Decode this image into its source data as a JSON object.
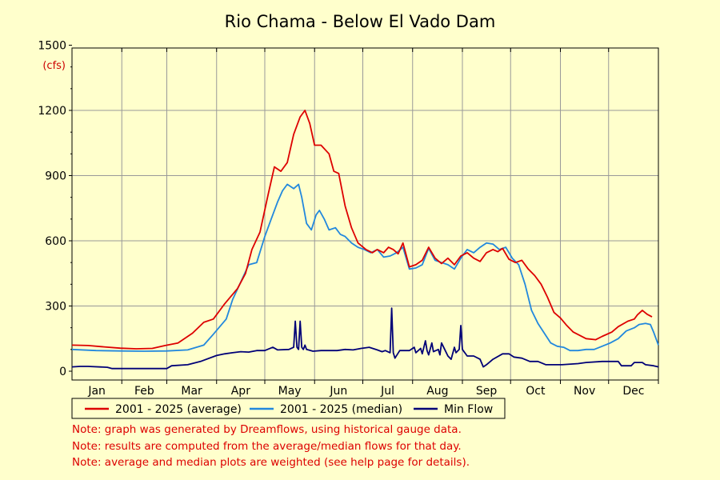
{
  "colors": {
    "background": "#ffffcc",
    "grid": "#999999",
    "average": "#dd0000",
    "median": "#2288dd",
    "min_flow": "#000077",
    "unit_label": "#cc0000",
    "notes": "#dd0000"
  },
  "chart_data": {
    "type": "line",
    "title": "Rio Chama - Below El Vado Dam",
    "ylabel": "(cfs)",
    "ylim": [
      0,
      1500
    ],
    "yticks": [
      0,
      300,
      600,
      900,
      1200,
      1500
    ],
    "xlim": [
      0,
      365
    ],
    "grid": true,
    "legend_position": "bottom",
    "months": [
      "Jan",
      "Feb",
      "Mar",
      "Apr",
      "May",
      "Jun",
      "Jul",
      "Aug",
      "Sep",
      "Oct",
      "Nov",
      "Dec"
    ],
    "series": [
      {
        "name": "2001 - 2025 (average)",
        "color": "#dd0000",
        "points": [
          [
            0,
            120
          ],
          [
            10,
            118
          ],
          [
            20,
            112
          ],
          [
            30,
            106
          ],
          [
            40,
            103
          ],
          [
            50,
            105
          ],
          [
            58,
            118
          ],
          [
            66,
            130
          ],
          [
            75,
            175
          ],
          [
            82,
            225
          ],
          [
            88,
            240
          ],
          [
            95,
            310
          ],
          [
            103,
            380
          ],
          [
            108,
            450
          ],
          [
            112,
            560
          ],
          [
            117,
            640
          ],
          [
            122,
            810
          ],
          [
            126,
            940
          ],
          [
            130,
            920
          ],
          [
            134,
            960
          ],
          [
            138,
            1090
          ],
          [
            142,
            1170
          ],
          [
            145,
            1200
          ],
          [
            148,
            1140
          ],
          [
            151,
            1040
          ],
          [
            155,
            1040
          ],
          [
            160,
            1000
          ],
          [
            163,
            920
          ],
          [
            166,
            910
          ],
          [
            170,
            760
          ],
          [
            174,
            660
          ],
          [
            178,
            590
          ],
          [
            183,
            560
          ],
          [
            187,
            545
          ],
          [
            190,
            560
          ],
          [
            194,
            545
          ],
          [
            197,
            570
          ],
          [
            200,
            560
          ],
          [
            203,
            540
          ],
          [
            206,
            590
          ],
          [
            210,
            480
          ],
          [
            214,
            490
          ],
          [
            218,
            510
          ],
          [
            222,
            570
          ],
          [
            226,
            520
          ],
          [
            230,
            495
          ],
          [
            234,
            520
          ],
          [
            238,
            490
          ],
          [
            242,
            530
          ],
          [
            246,
            545
          ],
          [
            250,
            520
          ],
          [
            254,
            505
          ],
          [
            258,
            545
          ],
          [
            262,
            560
          ],
          [
            265,
            550
          ],
          [
            268,
            565
          ],
          [
            272,
            515
          ],
          [
            276,
            500
          ],
          [
            280,
            510
          ],
          [
            284,
            470
          ],
          [
            288,
            440
          ],
          [
            292,
            400
          ],
          [
            296,
            340
          ],
          [
            300,
            270
          ],
          [
            304,
            245
          ],
          [
            308,
            210
          ],
          [
            312,
            180
          ],
          [
            316,
            165
          ],
          [
            320,
            150
          ],
          [
            326,
            145
          ],
          [
            330,
            160
          ],
          [
            336,
            180
          ],
          [
            340,
            205
          ],
          [
            346,
            230
          ],
          [
            350,
            240
          ],
          [
            352,
            260
          ],
          [
            355,
            280
          ],
          [
            358,
            262
          ],
          [
            361,
            250
          ]
        ]
      },
      {
        "name": "2001 - 2025 (median)",
        "color": "#2288dd",
        "points": [
          [
            0,
            100
          ],
          [
            15,
            95
          ],
          [
            30,
            93
          ],
          [
            45,
            92
          ],
          [
            59,
            93
          ],
          [
            72,
            98
          ],
          [
            82,
            120
          ],
          [
            88,
            170
          ],
          [
            96,
            240
          ],
          [
            100,
            330
          ],
          [
            105,
            410
          ],
          [
            110,
            490
          ],
          [
            115,
            500
          ],
          [
            120,
            620
          ],
          [
            124,
            700
          ],
          [
            128,
            780
          ],
          [
            131,
            830
          ],
          [
            134,
            860
          ],
          [
            138,
            840
          ],
          [
            141,
            860
          ],
          [
            143,
            800
          ],
          [
            146,
            680
          ],
          [
            149,
            650
          ],
          [
            152,
            720
          ],
          [
            154,
            740
          ],
          [
            157,
            700
          ],
          [
            160,
            650
          ],
          [
            164,
            660
          ],
          [
            167,
            630
          ],
          [
            170,
            620
          ],
          [
            174,
            590
          ],
          [
            178,
            570
          ],
          [
            182,
            560
          ],
          [
            186,
            545
          ],
          [
            190,
            560
          ],
          [
            194,
            525
          ],
          [
            198,
            530
          ],
          [
            202,
            545
          ],
          [
            206,
            570
          ],
          [
            210,
            470
          ],
          [
            214,
            475
          ],
          [
            218,
            490
          ],
          [
            222,
            565
          ],
          [
            226,
            510
          ],
          [
            230,
            500
          ],
          [
            234,
            490
          ],
          [
            238,
            470
          ],
          [
            242,
            520
          ],
          [
            246,
            560
          ],
          [
            250,
            545
          ],
          [
            254,
            570
          ],
          [
            258,
            590
          ],
          [
            262,
            585
          ],
          [
            266,
            560
          ],
          [
            270,
            570
          ],
          [
            274,
            520
          ],
          [
            278,
            490
          ],
          [
            282,
            400
          ],
          [
            286,
            280
          ],
          [
            290,
            220
          ],
          [
            294,
            175
          ],
          [
            298,
            130
          ],
          [
            302,
            115
          ],
          [
            306,
            110
          ],
          [
            310,
            95
          ],
          [
            315,
            95
          ],
          [
            320,
            100
          ],
          [
            325,
            100
          ],
          [
            330,
            115
          ],
          [
            335,
            130
          ],
          [
            340,
            150
          ],
          [
            345,
            185
          ],
          [
            350,
            200
          ],
          [
            353,
            215
          ],
          [
            357,
            220
          ],
          [
            360,
            215
          ],
          [
            362,
            180
          ],
          [
            365,
            120
          ]
        ]
      },
      {
        "name": "Min Flow",
        "color": "#000077",
        "points": [
          [
            0,
            20
          ],
          [
            5,
            22
          ],
          [
            10,
            22
          ],
          [
            22,
            18
          ],
          [
            25,
            12
          ],
          [
            50,
            12
          ],
          [
            59,
            12
          ],
          [
            62,
            25
          ],
          [
            72,
            30
          ],
          [
            80,
            45
          ],
          [
            90,
            72
          ],
          [
            95,
            80
          ],
          [
            100,
            85
          ],
          [
            105,
            90
          ],
          [
            110,
            88
          ],
          [
            115,
            95
          ],
          [
            120,
            95
          ],
          [
            125,
            110
          ],
          [
            128,
            98
          ],
          [
            135,
            100
          ],
          [
            138,
            110
          ],
          [
            139,
            230
          ],
          [
            140,
            110
          ],
          [
            141,
            100
          ],
          [
            142,
            230
          ],
          [
            143,
            110
          ],
          [
            144,
            100
          ],
          [
            145,
            120
          ],
          [
            146,
            100
          ],
          [
            150,
            92
          ],
          [
            155,
            95
          ],
          [
            165,
            95
          ],
          [
            170,
            100
          ],
          [
            175,
            98
          ],
          [
            180,
            105
          ],
          [
            185,
            110
          ],
          [
            190,
            98
          ],
          [
            193,
            90
          ],
          [
            195,
            95
          ],
          [
            198,
            85
          ],
          [
            199,
            290
          ],
          [
            200,
            85
          ],
          [
            201,
            60
          ],
          [
            204,
            95
          ],
          [
            210,
            95
          ],
          [
            213,
            110
          ],
          [
            214,
            85
          ],
          [
            217,
            105
          ],
          [
            218,
            80
          ],
          [
            220,
            140
          ],
          [
            221,
            95
          ],
          [
            222,
            75
          ],
          [
            224,
            130
          ],
          [
            225,
            90
          ],
          [
            228,
            100
          ],
          [
            229,
            75
          ],
          [
            230,
            130
          ],
          [
            232,
            100
          ],
          [
            234,
            70
          ],
          [
            236,
            55
          ],
          [
            238,
            110
          ],
          [
            239,
            85
          ],
          [
            241,
            100
          ],
          [
            242,
            210
          ],
          [
            243,
            100
          ],
          [
            246,
            70
          ],
          [
            250,
            70
          ],
          [
            254,
            55
          ],
          [
            256,
            20
          ],
          [
            258,
            30
          ],
          [
            262,
            55
          ],
          [
            268,
            80
          ],
          [
            272,
            80
          ],
          [
            275,
            65
          ],
          [
            280,
            60
          ],
          [
            285,
            45
          ],
          [
            290,
            45
          ],
          [
            295,
            30
          ],
          [
            305,
            30
          ],
          [
            315,
            35
          ],
          [
            320,
            40
          ],
          [
            330,
            45
          ],
          [
            340,
            45
          ],
          [
            342,
            25
          ],
          [
            348,
            25
          ],
          [
            350,
            40
          ],
          [
            355,
            40
          ],
          [
            357,
            30
          ],
          [
            362,
            25
          ],
          [
            365,
            20
          ]
        ]
      }
    ],
    "notes": [
      "Note: graph was generated by Dreamflows, using historical gauge data.",
      "Note: results are computed from the average/median flows for that day.",
      "Note: average and median plots are weighted (see help page for details)."
    ]
  }
}
